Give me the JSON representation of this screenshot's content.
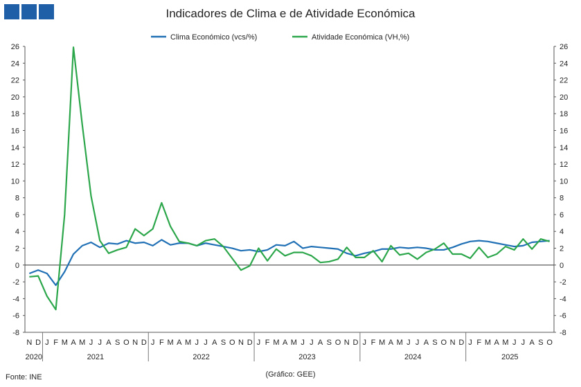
{
  "header": {
    "title": "Indicadores de Clima e de Atividade Económica"
  },
  "footer": {
    "source": "Fonte: INE",
    "credit": "(Gráfico: GEE)"
  },
  "logo": {
    "color": "#1f5fa8",
    "icon": "three-squares-logo-icon"
  },
  "chart_data": {
    "type": "line",
    "title": "Indicadores de Clima e de Atividade Económica",
    "ylim": [
      -8,
      26
    ],
    "yticks": [
      -8,
      -6,
      -4,
      -2,
      0,
      2,
      4,
      6,
      8,
      10,
      12,
      14,
      16,
      18,
      20,
      22,
      24,
      26
    ],
    "dual_y_axis": true,
    "grid": false,
    "legend": "top-center",
    "month_labels": [
      "N",
      "D",
      "J",
      "F",
      "M",
      "A",
      "M",
      "J",
      "J",
      "A",
      "S",
      "O",
      "N",
      "D",
      "J",
      "F",
      "M",
      "A",
      "M",
      "J",
      "J",
      "A",
      "S",
      "O",
      "N",
      "D",
      "J",
      "F",
      "M",
      "A",
      "M",
      "J",
      "J",
      "A",
      "S",
      "O",
      "N",
      "D",
      "J",
      "F",
      "M",
      "A",
      "M",
      "J",
      "J",
      "A",
      "S",
      "O",
      "N",
      "D",
      "J",
      "F",
      "M",
      "A",
      "M",
      "J",
      "J",
      "A",
      "S",
      "O"
    ],
    "years": [
      {
        "label": "2020",
        "start": 0,
        "end": 1
      },
      {
        "label": "2021",
        "start": 2,
        "end": 13
      },
      {
        "label": "2022",
        "start": 14,
        "end": 25
      },
      {
        "label": "2023",
        "start": 26,
        "end": 37
      },
      {
        "label": "2024",
        "start": 38,
        "end": 49
      },
      {
        "label": "2025",
        "start": 50,
        "end": 59
      }
    ],
    "series": [
      {
        "name": "Clima Económico (vcs/%)",
        "color": "#1f6fb5",
        "values": [
          -1.0,
          -0.6,
          -1.0,
          -2.4,
          -0.8,
          1.3,
          2.3,
          2.7,
          2.1,
          2.6,
          2.5,
          2.9,
          2.6,
          2.7,
          2.3,
          3.0,
          2.4,
          2.6,
          2.6,
          2.3,
          2.6,
          2.4,
          2.2,
          2.0,
          1.7,
          1.8,
          1.6,
          1.8,
          2.4,
          2.3,
          2.8,
          2.0,
          2.2,
          2.1,
          2.0,
          1.9,
          1.4,
          1.1,
          1.4,
          1.6,
          1.9,
          1.9,
          2.1,
          2.0,
          2.1,
          2.0,
          1.8,
          1.8,
          2.1,
          2.5,
          2.8,
          2.9,
          2.8,
          2.6,
          2.4,
          2.2,
          2.3,
          2.7,
          2.8,
          2.9
        ]
      },
      {
        "name": "Atividade Económica (VH,%)",
        "color": "#2ca64a",
        "values": [
          -1.4,
          -1.3,
          -3.7,
          -5.3,
          6.0,
          25.9,
          16.7,
          8.2,
          2.9,
          1.4,
          1.8,
          2.1,
          4.3,
          3.5,
          4.3,
          7.4,
          4.6,
          2.8,
          2.6,
          2.3,
          2.9,
          3.1,
          2.2,
          0.8,
          -0.6,
          -0.1,
          2.0,
          0.5,
          1.9,
          1.1,
          1.5,
          1.5,
          1.1,
          0.3,
          0.4,
          0.7,
          2.1,
          0.9,
          0.9,
          1.7,
          0.4,
          2.3,
          1.2,
          1.4,
          0.7,
          1.5,
          1.9,
          2.6,
          1.3,
          1.3,
          0.8,
          2.1,
          0.9,
          1.3,
          2.2,
          1.8,
          3.1,
          1.9,
          3.1,
          2.8
        ]
      }
    ]
  }
}
